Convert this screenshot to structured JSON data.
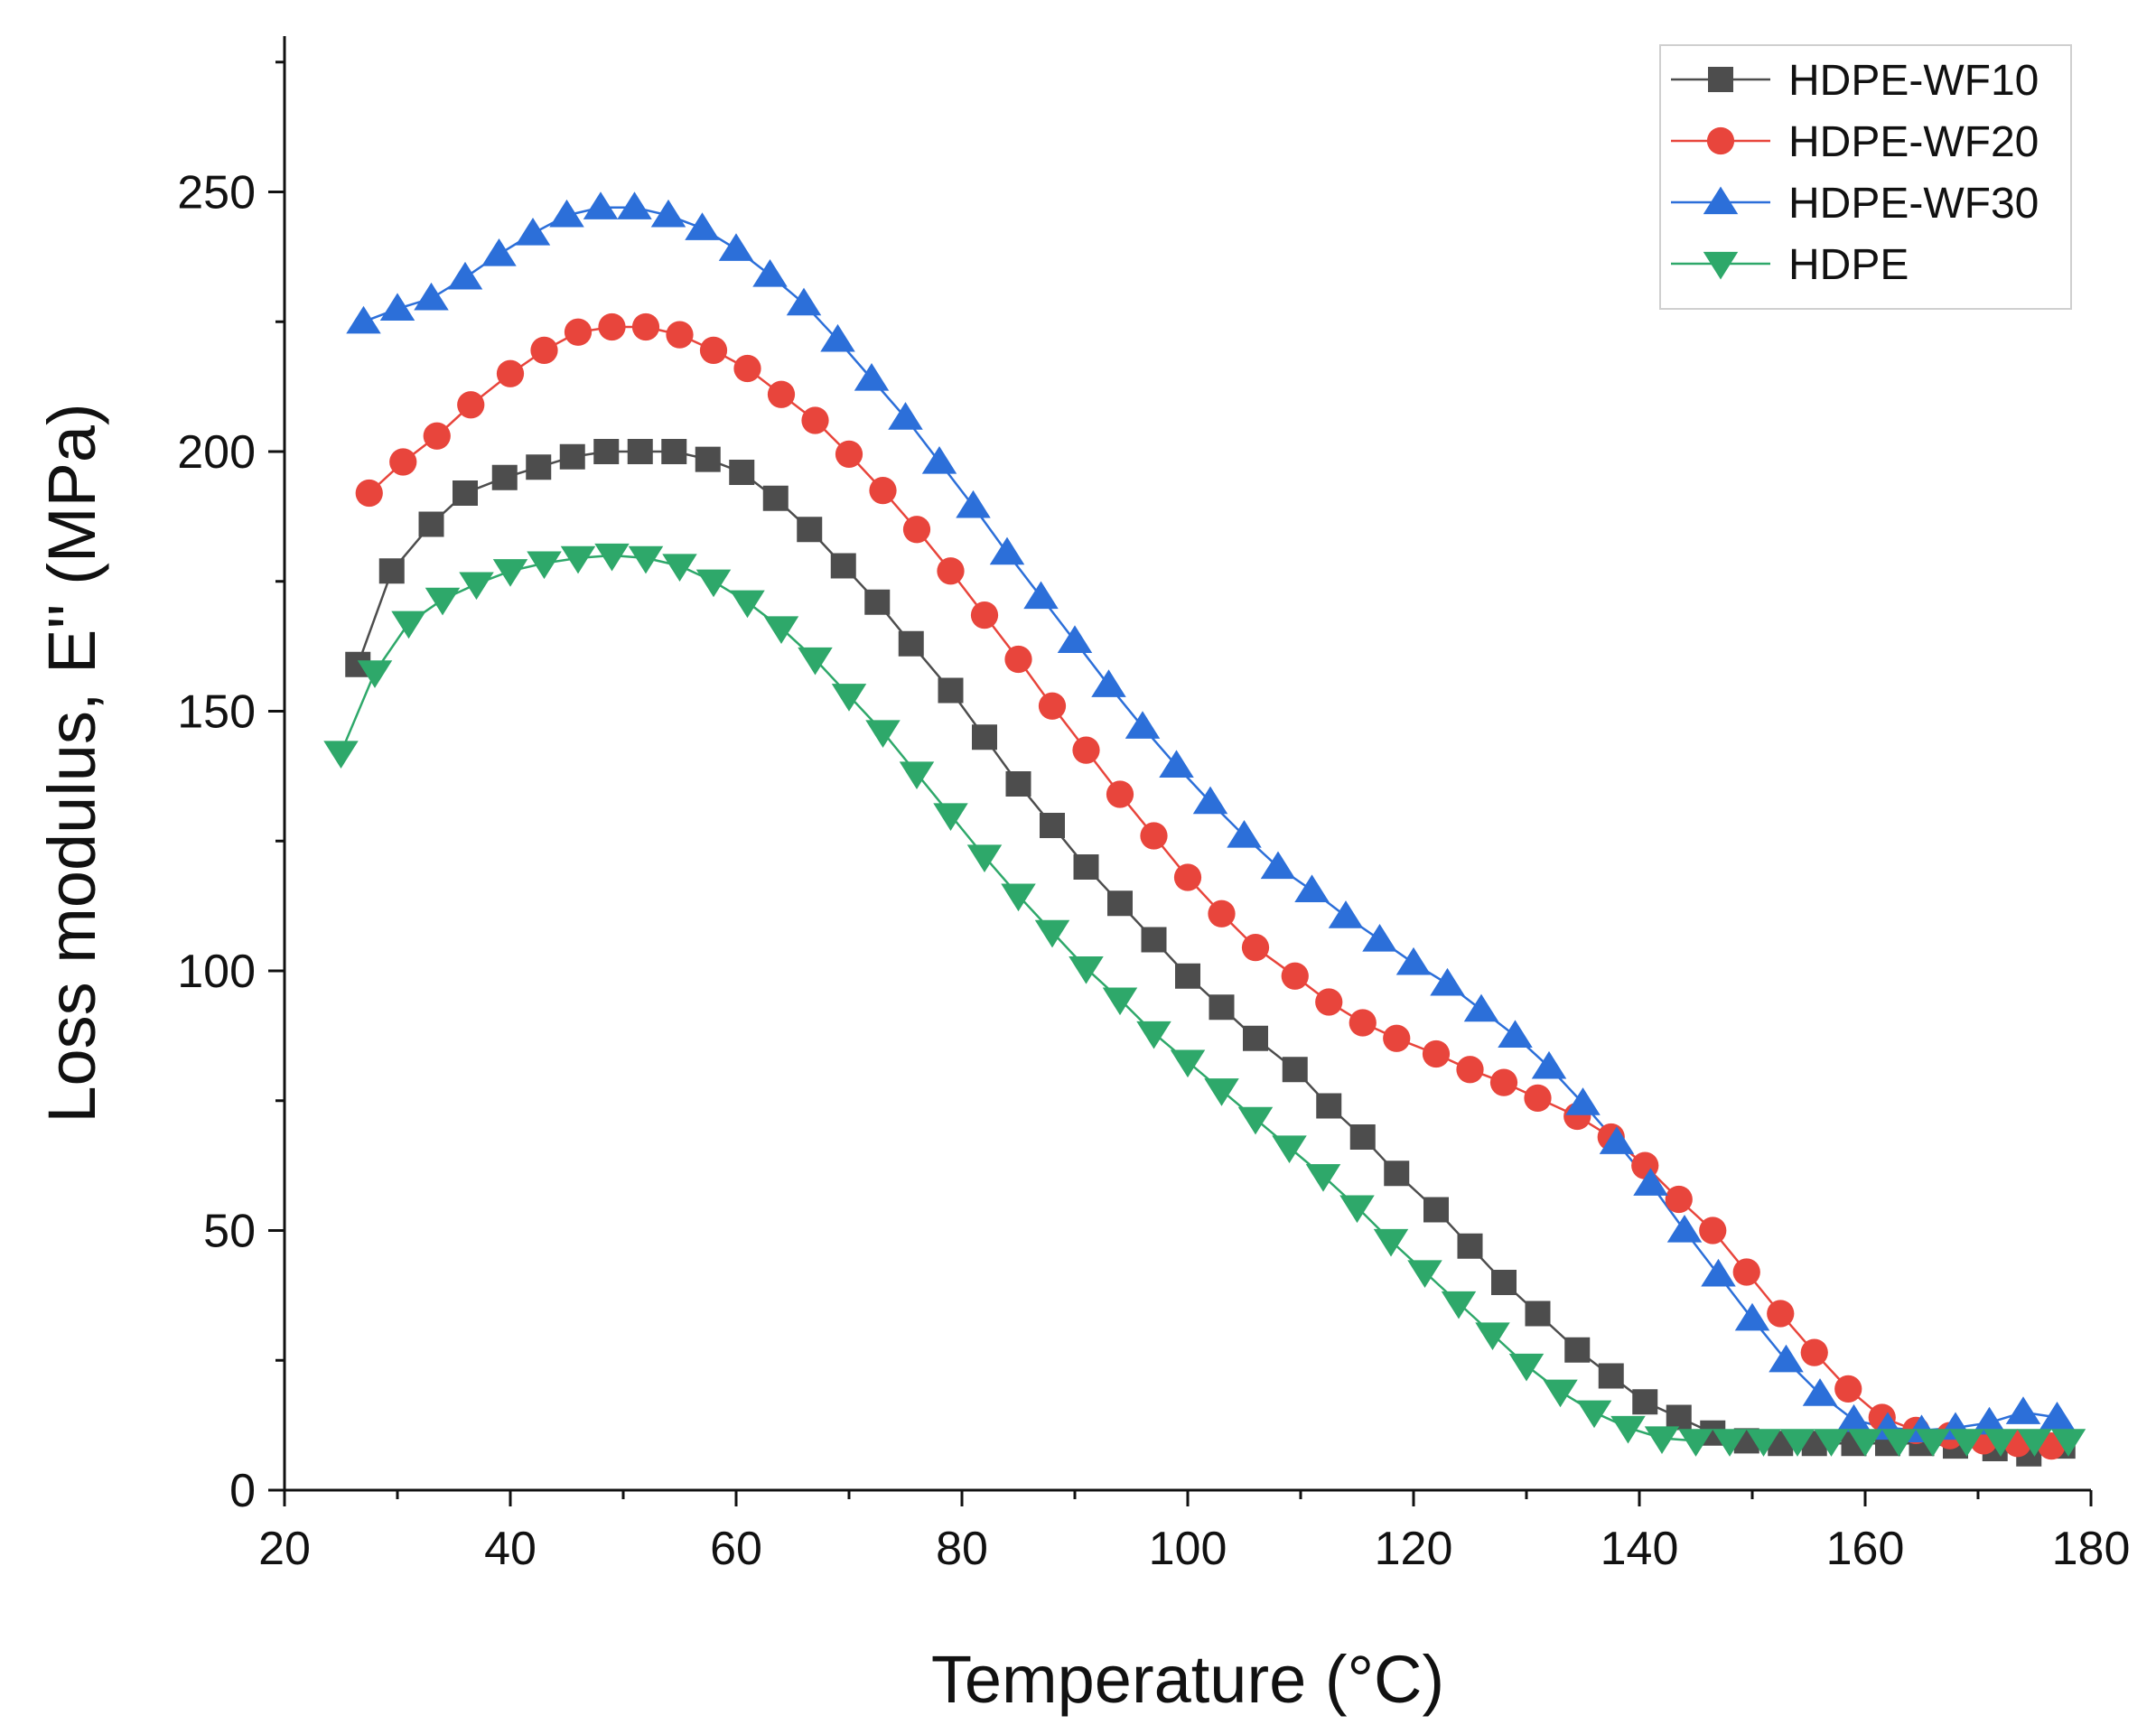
{
  "chart_data": {
    "type": "line",
    "title": "",
    "xlabel": "Temperature (°C)",
    "ylabel": "Loss modulus, E'' (MPa)",
    "xlim": [
      20,
      180
    ],
    "ylim": [
      0,
      280
    ],
    "xticks": [
      20,
      40,
      60,
      80,
      100,
      120,
      140,
      160,
      180
    ],
    "yticks": [
      0,
      50,
      100,
      150,
      200,
      250
    ],
    "grid": false,
    "legend_position": "top-right",
    "series": [
      {
        "name": "HDPE-WF10",
        "color": "#4d4d4d",
        "marker": "square",
        "x": [
          26.5,
          29.5,
          33,
          36,
          39.5,
          42.5,
          45.5,
          48.5,
          51.5,
          54.5,
          57.5,
          60.5,
          63.5,
          66.5,
          69.5,
          72.5,
          75.5,
          79,
          82,
          85,
          88,
          91,
          94,
          97,
          100,
          103,
          106,
          109.5,
          112.5,
          115.5,
          118.5,
          122,
          125,
          128,
          131,
          134.5,
          137.5,
          140.5,
          143.5,
          146.5,
          149.5,
          152.5,
          155.5,
          159,
          162,
          165,
          168,
          171.5,
          174.5,
          177.5
        ],
        "y": [
          159,
          177,
          186,
          192,
          195,
          197,
          199,
          200,
          200,
          200,
          198.5,
          196,
          191,
          185,
          178,
          171,
          163,
          154,
          145,
          136,
          128,
          120,
          113,
          106,
          99,
          93,
          87,
          81,
          74,
          68,
          61,
          54,
          47,
          40,
          34,
          27,
          22,
          17,
          14,
          11,
          9.5,
          9,
          9,
          9,
          9,
          9,
          8.5,
          8,
          7,
          8.5
        ]
      },
      {
        "name": "HDPE-WF20",
        "color": "#e8453c",
        "marker": "circle",
        "x": [
          27.5,
          30.5,
          33.5,
          36.5,
          40,
          43,
          46,
          49,
          52,
          55,
          58,
          61,
          64,
          67,
          70,
          73,
          76,
          79,
          82,
          85,
          88,
          91,
          94,
          97,
          100,
          103,
          106,
          109.5,
          112.5,
          115.5,
          118.5,
          122,
          125,
          128,
          131,
          134.5,
          137.5,
          140.5,
          143.5,
          146.5,
          149.5,
          152.5,
          155.5,
          158.5,
          161.5,
          164.5,
          167.5,
          170.5,
          173.5,
          176.5
        ],
        "y": [
          192,
          198,
          203,
          209,
          215,
          219.5,
          223,
          224,
          224,
          222.5,
          219.5,
          216,
          211,
          206,
          199.5,
          192.5,
          185,
          177,
          168.5,
          160,
          151,
          142.5,
          134,
          126,
          118,
          111,
          104.5,
          99,
          94,
          90,
          87,
          84,
          81,
          78.5,
          75.5,
          72,
          68,
          62.5,
          56,
          50,
          42,
          34,
          26.5,
          19.5,
          14,
          11.5,
          10.5,
          9.5,
          9,
          8.5
        ]
      },
      {
        "name": "HDPE-WF30",
        "color": "#2c6fd9",
        "marker": "triangle-up",
        "x": [
          27,
          30,
          33,
          36,
          39,
          42,
          45,
          48,
          51,
          54,
          57,
          60,
          63,
          66,
          69,
          72,
          75,
          78,
          81,
          84,
          87,
          90,
          93,
          96,
          99,
          102,
          105,
          108,
          111,
          114,
          117,
          120,
          123,
          126,
          129,
          132,
          135,
          138,
          141,
          144,
          147,
          150,
          153,
          156,
          159,
          162,
          165,
          168,
          171,
          174,
          177
        ],
        "y": [
          225,
          227.5,
          229.5,
          233.5,
          238,
          242,
          245.5,
          247,
          247,
          245.5,
          243,
          239,
          234,
          228.5,
          221.5,
          214,
          206.5,
          198,
          189.5,
          180.5,
          172,
          163.5,
          155,
          147,
          139.5,
          132.5,
          126,
          120,
          115.5,
          110.5,
          106,
          101.5,
          97.5,
          92.5,
          87.5,
          81.5,
          74.5,
          67,
          59,
          50,
          41.5,
          33,
          25,
          18.5,
          13.5,
          12,
          11.5,
          12,
          13,
          15,
          14
        ]
      },
      {
        "name": "HDPE",
        "color": "#2ea86a",
        "marker": "triangle-down",
        "x": [
          25,
          28,
          31,
          34,
          37,
          40,
          43,
          46,
          49,
          52,
          55,
          58,
          61,
          64,
          67,
          70,
          73,
          76,
          79,
          82,
          85,
          88,
          91,
          94,
          97,
          100,
          103,
          106,
          109,
          112,
          115,
          118,
          121,
          124,
          127,
          130,
          133,
          136,
          139,
          142,
          145,
          148,
          151,
          154,
          157,
          160,
          163,
          166,
          169,
          172,
          175,
          178
        ],
        "y": [
          142,
          157.5,
          167,
          171.5,
          174.5,
          177,
          178.5,
          179.5,
          180,
          179.5,
          178,
          175,
          171,
          166,
          160,
          153,
          146,
          138,
          130,
          122,
          114.5,
          107.5,
          100.5,
          94.5,
          88,
          82.5,
          77,
          71.5,
          66,
          60.5,
          54.5,
          48,
          42,
          36,
          30,
          24,
          19,
          15,
          12,
          10,
          9.5,
          9.5,
          9.5,
          9.5,
          9.5,
          9.5,
          9.5,
          9.5,
          9.5,
          9.5,
          9.5,
          9.5
        ]
      }
    ]
  }
}
